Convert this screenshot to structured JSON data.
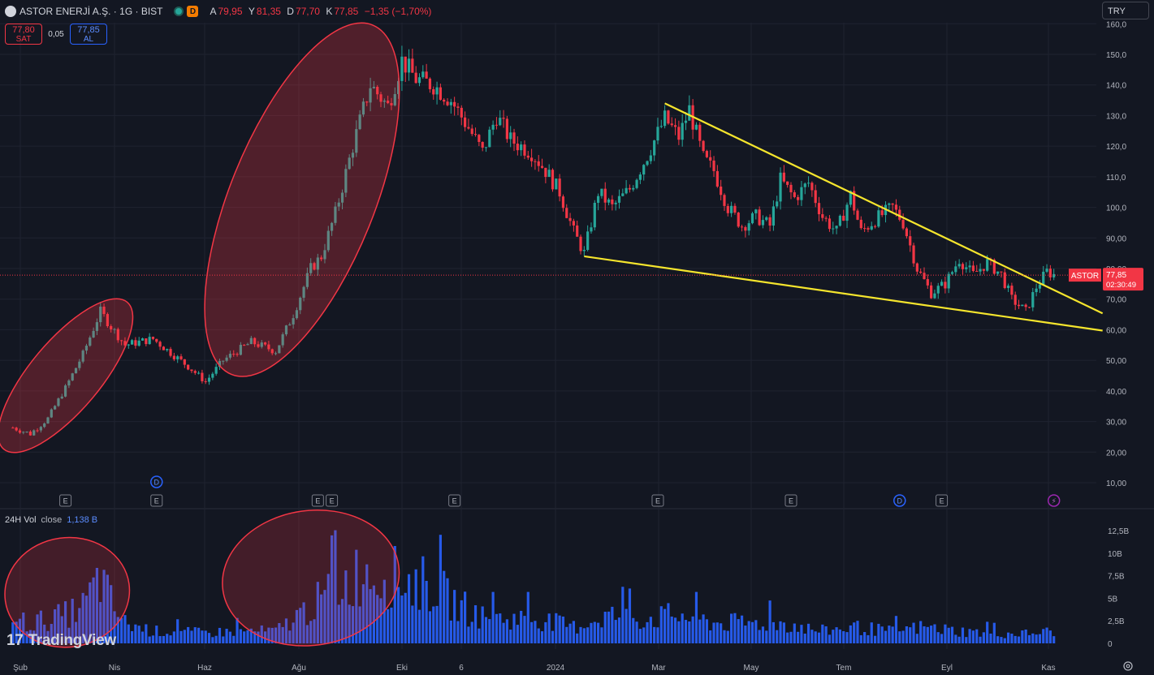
{
  "header": {
    "title": "ASTOR ENERJİ A.Ş. · 1G · BIST",
    "delay_badge": "D",
    "ohlc": {
      "o_label": "A",
      "o_value": "79,95",
      "h_label": "Y",
      "h_value": "81,35",
      "l_label": "D",
      "l_value": "77,70",
      "c_label": "K",
      "c_value": "77,85",
      "change": "−1,35 (−1,70%)"
    },
    "currency": "TRY"
  },
  "trade": {
    "sell_price": "77,80",
    "sell_label": "SAT",
    "spread": "0,05",
    "buy_price": "77,85",
    "buy_label": "AL"
  },
  "last_price_label": {
    "symbol": "ASTOR",
    "price": "77,85",
    "countdown": "02:30:49"
  },
  "volume_legend": {
    "name": "24H Vol",
    "source": "close",
    "value": "1,138 B"
  },
  "watermark": "TradingView",
  "colors": {
    "background": "#131722",
    "up": "#26a69a",
    "down": "#f23645",
    "volume": "#2962ff",
    "trendline": "#f5e52d",
    "ellipse": "#f23645"
  },
  "chart_data": {
    "type": "candlestick",
    "y_axis": {
      "ticks": [
        "10,00",
        "20,00",
        "30,00",
        "40,00",
        "50,00",
        "60,00",
        "70,00",
        "80,00",
        "90,00",
        "100,0",
        "110,0",
        "120,0",
        "130,0",
        "140,0",
        "150,0",
        "160,0"
      ],
      "range": [
        5,
        162
      ]
    },
    "x_axis": {
      "labels": [
        "Şub",
        "Nis",
        "Haz",
        "Ağu",
        "Eki",
        "6",
        "2024",
        "Mar",
        "May",
        "Tem",
        "Eyl",
        "Kas"
      ]
    },
    "price_path": [
      [
        0,
        28
      ],
      [
        5,
        26
      ],
      [
        10,
        31
      ],
      [
        15,
        41
      ],
      [
        20,
        52
      ],
      [
        25,
        66
      ],
      [
        28,
        61
      ],
      [
        32,
        55
      ],
      [
        40,
        57
      ],
      [
        50,
        48
      ],
      [
        55,
        43
      ],
      [
        60,
        50
      ],
      [
        68,
        56
      ],
      [
        75,
        53
      ],
      [
        80,
        65
      ],
      [
        85,
        80
      ],
      [
        88,
        84
      ],
      [
        92,
        98
      ],
      [
        97,
        120
      ],
      [
        102,
        140
      ],
      [
        107,
        133
      ],
      [
        111,
        148
      ],
      [
        115,
        142
      ],
      [
        120,
        140
      ],
      [
        125,
        135
      ],
      [
        130,
        126
      ],
      [
        134,
        118
      ],
      [
        138,
        130
      ],
      [
        142,
        122
      ],
      [
        148,
        118
      ],
      [
        152,
        112
      ],
      [
        156,
        105
      ],
      [
        160,
        92
      ],
      [
        163,
        85
      ],
      [
        167,
        105
      ],
      [
        171,
        100
      ],
      [
        176,
        106
      ],
      [
        181,
        117
      ],
      [
        186,
        129
      ],
      [
        190,
        123
      ],
      [
        193,
        132
      ],
      [
        197,
        116
      ],
      [
        200,
        112
      ],
      [
        204,
        100
      ],
      [
        208,
        94
      ],
      [
        212,
        97
      ],
      [
        216,
        94
      ],
      [
        219,
        109
      ],
      [
        223,
        103
      ],
      [
        227,
        108
      ],
      [
        231,
        97
      ],
      [
        235,
        92
      ],
      [
        239,
        104
      ],
      [
        242,
        92
      ],
      [
        246,
        96
      ],
      [
        251,
        100
      ],
      [
        254,
        95
      ],
      [
        258,
        80
      ],
      [
        262,
        72
      ],
      [
        266,
        75
      ],
      [
        270,
        83
      ],
      [
        274,
        78
      ],
      [
        278,
        82
      ],
      [
        282,
        78
      ],
      [
        285,
        70
      ],
      [
        289,
        66
      ],
      [
        292,
        74
      ],
      [
        295,
        79
      ],
      [
        297,
        78
      ]
    ],
    "volume_path": [
      [
        0,
        3
      ],
      [
        5,
        2.5
      ],
      [
        10,
        3
      ],
      [
        15,
        3.5
      ],
      [
        20,
        4.5
      ],
      [
        25,
        8
      ],
      [
        28,
        5
      ],
      [
        32,
        2.5
      ],
      [
        40,
        1.5
      ],
      [
        55,
        1.3
      ],
      [
        65,
        1.5
      ],
      [
        75,
        1.5
      ],
      [
        80,
        3
      ],
      [
        90,
        6
      ],
      [
        100,
        9
      ],
      [
        110,
        8
      ],
      [
        120,
        7
      ],
      [
        126,
        5
      ],
      [
        135,
        3
      ],
      [
        150,
        3
      ],
      [
        160,
        2
      ],
      [
        170,
        3.5
      ],
      [
        180,
        3
      ],
      [
        190,
        3.5
      ],
      [
        200,
        2.5
      ],
      [
        210,
        2.5
      ],
      [
        220,
        2.5
      ],
      [
        230,
        1.5
      ],
      [
        240,
        2
      ],
      [
        250,
        1.5
      ],
      [
        260,
        2
      ],
      [
        270,
        1.5
      ],
      [
        280,
        1.2
      ],
      [
        290,
        1.2
      ],
      [
        297,
        1.5
      ]
    ],
    "volume_axis": {
      "ticks": [
        "0",
        "2,5B",
        "5B",
        "7,5B",
        "10B",
        "12,5B"
      ],
      "range": [
        0,
        13.5
      ]
    },
    "trendline_upper": {
      "from": {
        "x": 186,
        "y": 134
      },
      "to": {
        "x": 297,
        "y": 73
      }
    },
    "trendline_lower": {
      "from": {
        "x": 163,
        "y": 84
      },
      "to": {
        "x": 297,
        "y": 62
      }
    },
    "last_price": 77.85,
    "event_markers": [
      {
        "kind": "E",
        "x": 15
      },
      {
        "kind": "D",
        "x": 41
      },
      {
        "kind": "E",
        "x": 41
      },
      {
        "kind": "E",
        "x": 87
      },
      {
        "kind": "E",
        "x": 91
      },
      {
        "kind": "E",
        "x": 126
      },
      {
        "kind": "E",
        "x": 184
      },
      {
        "kind": "E",
        "x": 222
      },
      {
        "kind": "D",
        "x": 253
      },
      {
        "kind": "E",
        "x": 265
      },
      {
        "kind": "⚡",
        "x": 297
      }
    ]
  }
}
